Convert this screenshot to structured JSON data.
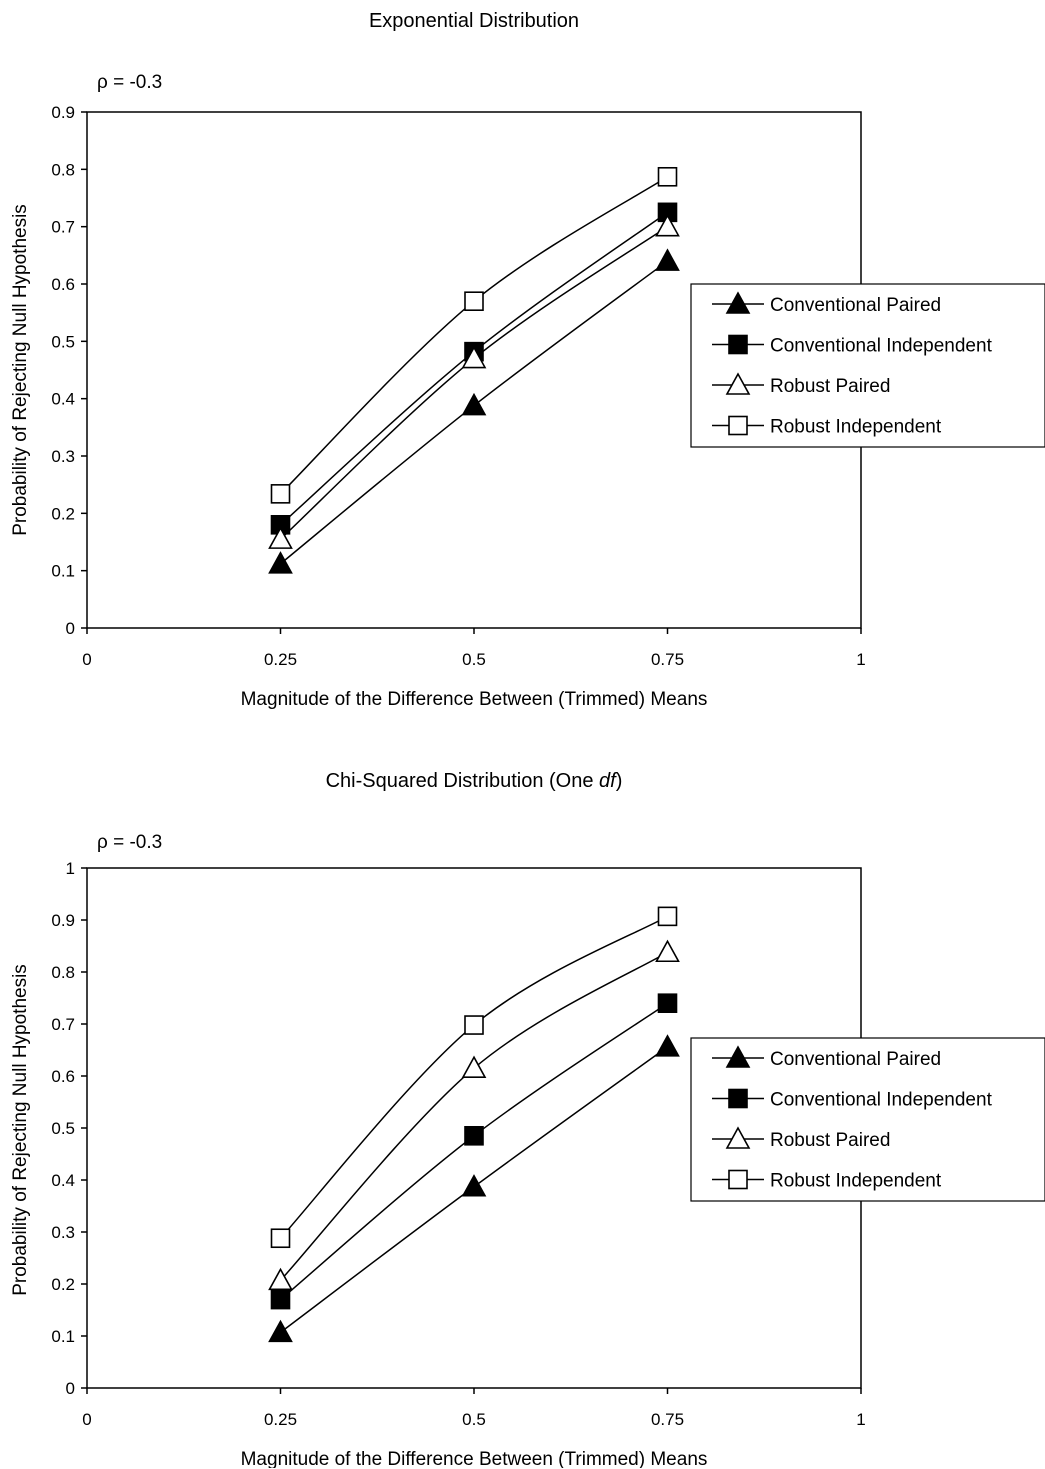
{
  "chart_data": [
    {
      "type": "line",
      "title": "Exponential Distribution",
      "annotation": "ρ = -0.3",
      "xlabel": "Magnitude of the Difference Between (Trimmed) Means",
      "ylabel": "Probability of Rejecting Null Hypothesis",
      "xlim": [
        0,
        1
      ],
      "ylim": [
        0,
        0.9
      ],
      "x_ticks": [
        "0",
        "0.25",
        "0.5",
        "0.75",
        "1"
      ],
      "y_ticks": [
        "0",
        "0.1",
        "0.2",
        "0.3",
        "0.4",
        "0.5",
        "0.6",
        "0.7",
        "0.8",
        "0.9"
      ],
      "grid": false,
      "legend_position": "right",
      "x": [
        0.25,
        0.5,
        0.75
      ],
      "series": [
        {
          "name": "Conventional Paired",
          "marker": "filled-triangle",
          "values": [
            0.112,
            0.388,
            0.64
          ]
        },
        {
          "name": "Conventional Independent",
          "marker": "filled-square",
          "values": [
            0.18,
            0.482,
            0.725
          ]
        },
        {
          "name": "Robust Paired",
          "marker": "open-triangle",
          "values": [
            0.155,
            0.47,
            0.7
          ]
        },
        {
          "name": "Robust Independent",
          "marker": "open-square",
          "values": [
            0.234,
            0.57,
            0.787
          ]
        }
      ]
    },
    {
      "type": "line",
      "title_parts": [
        "Chi-Squared Distribution (One ",
        "df",
        ")"
      ],
      "annotation": "ρ = -0.3",
      "xlabel": "Magnitude of the Difference Between (Trimmed) Means",
      "ylabel": "Probability of Rejecting Null Hypothesis",
      "xlim": [
        0,
        1
      ],
      "ylim": [
        0,
        1
      ],
      "x_ticks": [
        "0",
        "0.25",
        "0.5",
        "0.75",
        "1"
      ],
      "y_ticks": [
        "0",
        "0.1",
        "0.2",
        "0.3",
        "0.4",
        "0.5",
        "0.6",
        "0.7",
        "0.8",
        "0.9",
        "1"
      ],
      "grid": false,
      "legend_position": "right",
      "x": [
        0.25,
        0.5,
        0.75
      ],
      "series": [
        {
          "name": "Conventional Paired",
          "marker": "filled-triangle",
          "values": [
            0.107,
            0.387,
            0.656
          ]
        },
        {
          "name": "Conventional Independent",
          "marker": "filled-square",
          "values": [
            0.17,
            0.485,
            0.74
          ]
        },
        {
          "name": "Robust Paired",
          "marker": "open-triangle",
          "values": [
            0.207,
            0.615,
            0.838
          ]
        },
        {
          "name": "Robust Independent",
          "marker": "open-square",
          "values": [
            0.288,
            0.698,
            0.907
          ]
        }
      ]
    }
  ]
}
